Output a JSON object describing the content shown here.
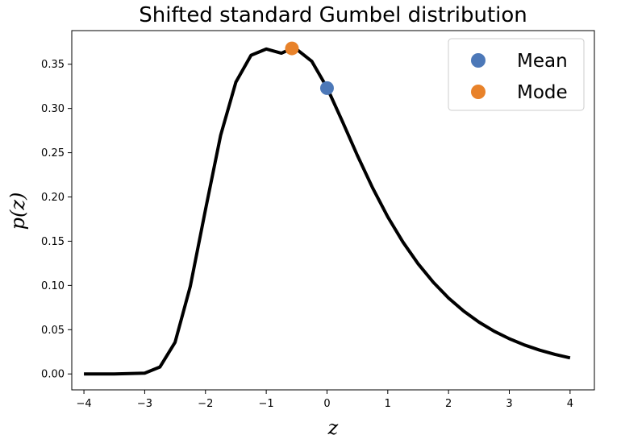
{
  "chart_data": {
    "type": "line",
    "title": "Shifted standard Gumbel distribution",
    "xlabel": "z",
    "ylabel": "p(z)",
    "xlim": [
      -4.2,
      4.4
    ],
    "ylim": [
      -0.018,
      0.388
    ],
    "xticks": [
      -4,
      -3,
      -2,
      -1,
      0,
      1,
      2,
      3,
      4
    ],
    "xtick_labels": [
      "−4",
      "−3",
      "−2",
      "−1",
      "0",
      "1",
      "2",
      "3",
      "4"
    ],
    "yticks": [
      0.0,
      0.05,
      0.1,
      0.15,
      0.2,
      0.25,
      0.3,
      0.35
    ],
    "ytick_labels": [
      "0.00",
      "0.05",
      "0.10",
      "0.15",
      "0.20",
      "0.25",
      "0.30",
      "0.35"
    ],
    "grid": false,
    "legend_position": "top-right",
    "series": [
      {
        "kind": "line",
        "color": "#000000",
        "x": [
          -4.0,
          -3.5,
          -3.0,
          -2.75,
          -2.5,
          -2.25,
          -2.0,
          -1.75,
          -1.5,
          -1.25,
          -1.0,
          -0.75,
          -0.5772,
          -0.5,
          -0.25,
          0.0,
          0.25,
          0.5,
          0.75,
          1.0,
          1.25,
          1.5,
          1.75,
          2.0,
          2.25,
          2.5,
          2.75,
          3.0,
          3.25,
          3.5,
          3.75,
          4.0
        ],
        "y": [
          0.0,
          0.0,
          0.0009,
          0.0078,
          0.0358,
          0.0989,
          0.1856,
          0.2697,
          0.3297,
          0.3601,
          0.3672,
          0.3625,
          0.3679,
          0.3669,
          0.3533,
          0.3236,
          0.2859,
          0.2469,
          0.2103,
          0.1775,
          0.149,
          0.1244,
          0.1035,
          0.0858,
          0.071,
          0.0586,
          0.0483,
          0.0398,
          0.0327,
          0.0269,
          0.0221,
          0.0181
        ]
      },
      {
        "kind": "scatter",
        "name": "Mean",
        "color": "#4c78b8",
        "x": [
          0.0
        ],
        "y": [
          0.323
        ]
      },
      {
        "kind": "scatter",
        "name": "Mode",
        "color": "#e8822a",
        "x": [
          -0.5772
        ],
        "y": [
          0.3679
        ]
      }
    ]
  }
}
